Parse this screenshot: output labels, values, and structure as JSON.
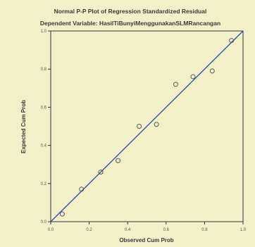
{
  "chart_data": {
    "type": "scatter",
    "title": "Normal P-P Plot of Regression Standardized Residual",
    "subtitle": "Dependent Variable: HasilTiBunyiMenggunakanSLMRancangan",
    "xlabel": "Observed Cum Prob",
    "ylabel": "Expected Cum Prob",
    "xlim": [
      0.0,
      1.0
    ],
    "ylim": [
      0.0,
      1.0
    ],
    "x_ticks": [
      "0.0",
      "0.2",
      "0.4",
      "0.6",
      "0.8",
      "1.0"
    ],
    "y_ticks": [
      "0.0",
      "0.2",
      "0.4",
      "0.6",
      "0.8",
      "1.0"
    ],
    "grid": false,
    "reference_line": [
      [
        0.0,
        0.0
      ],
      [
        1.0,
        1.0
      ]
    ],
    "points": [
      {
        "x": 0.06,
        "y": 0.04
      },
      {
        "x": 0.16,
        "y": 0.17
      },
      {
        "x": 0.26,
        "y": 0.26
      },
      {
        "x": 0.35,
        "y": 0.32
      },
      {
        "x": 0.46,
        "y": 0.5
      },
      {
        "x": 0.55,
        "y": 0.51
      },
      {
        "x": 0.65,
        "y": 0.72
      },
      {
        "x": 0.74,
        "y": 0.76
      },
      {
        "x": 0.84,
        "y": 0.79
      },
      {
        "x": 0.94,
        "y": 0.95
      }
    ],
    "colors": {
      "background": "#f2f0c8",
      "line": "#2a4ea0",
      "marker": "#555555"
    }
  }
}
